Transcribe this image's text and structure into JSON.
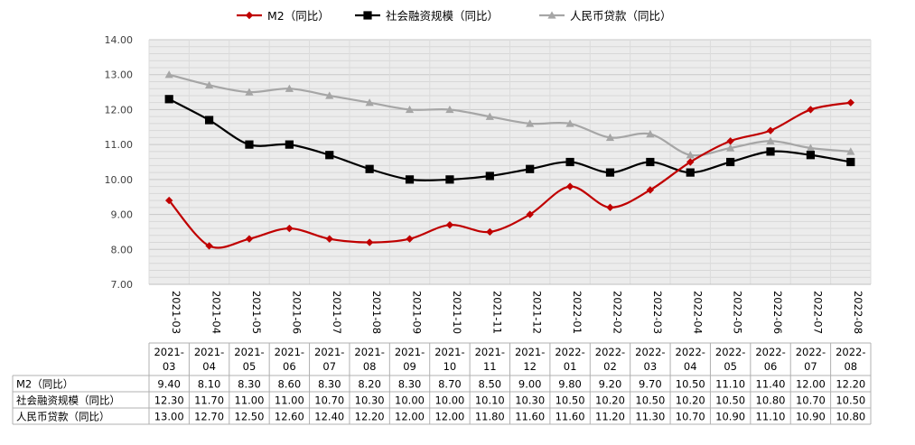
{
  "chart_data": {
    "type": "line",
    "categories": [
      "2021-03",
      "2021-04",
      "2021-05",
      "2021-06",
      "2021-07",
      "2021-08",
      "2021-09",
      "2021-10",
      "2021-11",
      "2021-12",
      "2022-01",
      "2022-02",
      "2022-03",
      "2022-04",
      "2022-05",
      "2022-06",
      "2022-07",
      "2022-08"
    ],
    "table_categories": [
      [
        "2021-",
        "03"
      ],
      [
        "2021-",
        "04"
      ],
      [
        "2021-",
        "05"
      ],
      [
        "2021-",
        "06"
      ],
      [
        "2021-",
        "07"
      ],
      [
        "2021-",
        "08"
      ],
      [
        "2021-",
        "09"
      ],
      [
        "2021-",
        "10"
      ],
      [
        "2021-",
        "11"
      ],
      [
        "2021-",
        "12"
      ],
      [
        "2022-",
        "01"
      ],
      [
        "2022-",
        "02"
      ],
      [
        "2022-",
        "03"
      ],
      [
        "2022-",
        "04"
      ],
      [
        "2022-",
        "05"
      ],
      [
        "2022-",
        "06"
      ],
      [
        "2022-",
        "07"
      ],
      [
        "2022-",
        "08"
      ]
    ],
    "ylim": [
      7.0,
      14.0
    ],
    "yticks": [
      "7.00",
      "8.00",
      "9.00",
      "10.00",
      "11.00",
      "12.00",
      "13.00",
      "14.00"
    ],
    "grid": true,
    "legend_position": "top-center",
    "series": [
      {
        "name": "M2（同比）",
        "color": "#c00000",
        "marker": "diamond",
        "values": [
          9.4,
          8.1,
          8.3,
          8.6,
          8.3,
          8.2,
          8.3,
          8.7,
          8.5,
          9.0,
          9.8,
          9.2,
          9.7,
          10.5,
          11.1,
          11.4,
          12.0,
          12.2
        ],
        "labels": [
          "9.40",
          "8.10",
          "8.30",
          "8.60",
          "8.30",
          "8.20",
          "8.30",
          "8.70",
          "8.50",
          "9.00",
          "9.80",
          "9.20",
          "9.70",
          "10.50",
          "11.10",
          "11.40",
          "12.00",
          "12.20"
        ]
      },
      {
        "name": "社会融资规模（同比）",
        "color": "#000000",
        "marker": "square",
        "values": [
          12.3,
          11.7,
          11.0,
          11.0,
          10.7,
          10.3,
          10.0,
          10.0,
          10.1,
          10.3,
          10.5,
          10.2,
          10.5,
          10.2,
          10.5,
          10.8,
          10.7,
          10.5
        ],
        "labels": [
          "12.30",
          "11.70",
          "11.00",
          "11.00",
          "10.70",
          "10.30",
          "10.00",
          "10.00",
          "10.10",
          "10.30",
          "10.50",
          "10.20",
          "10.50",
          "10.20",
          "10.50",
          "10.80",
          "10.70",
          "10.50"
        ]
      },
      {
        "name": "人民币贷款（同比）",
        "color": "#a6a6a6",
        "marker": "triangle",
        "values": [
          13.0,
          12.7,
          12.5,
          12.6,
          12.4,
          12.2,
          12.0,
          12.0,
          11.8,
          11.6,
          11.6,
          11.2,
          11.3,
          10.7,
          10.9,
          11.1,
          10.9,
          10.8
        ],
        "labels": [
          "13.00",
          "12.70",
          "12.50",
          "12.60",
          "12.40",
          "12.20",
          "12.00",
          "12.00",
          "11.80",
          "11.60",
          "11.60",
          "11.20",
          "11.30",
          "10.70",
          "10.90",
          "11.10",
          "10.90",
          "10.80"
        ]
      }
    ]
  }
}
